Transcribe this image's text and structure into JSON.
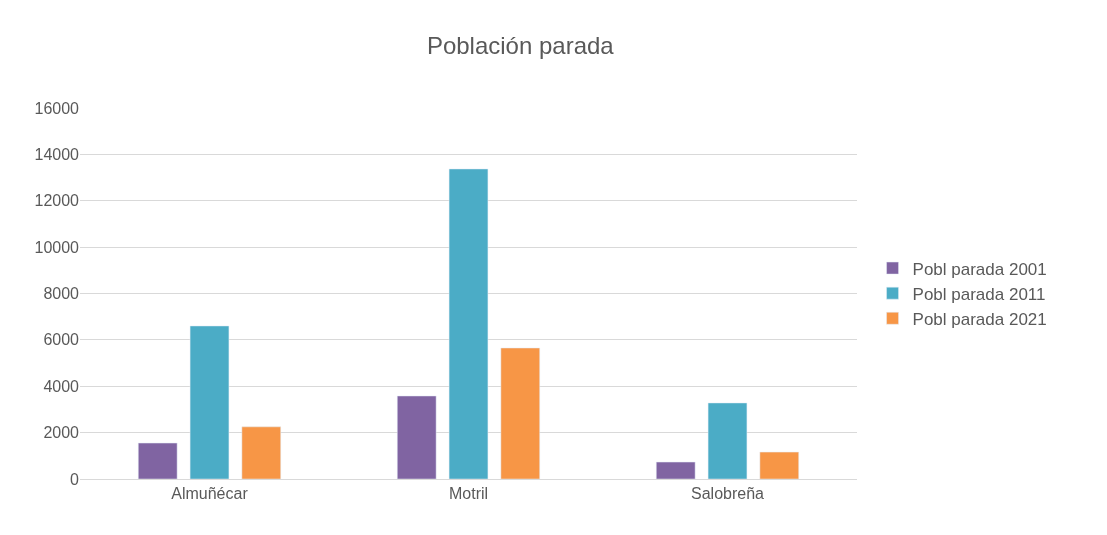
{
  "chart_data": {
    "type": "bar",
    "title": "Población parada",
    "categories": [
      "Almuñécar",
      "Motril",
      "Salobreña"
    ],
    "series": [
      {
        "name": "Pobl parada 2001",
        "color": "#8064a2",
        "values": [
          1550,
          3580,
          730
        ]
      },
      {
        "name": "Pobl parada 2011",
        "color": "#4bacc6",
        "values": [
          6600,
          13370,
          3280
        ]
      },
      {
        "name": "Pobl parada 2021",
        "color": "#f79646",
        "values": [
          2250,
          5650,
          1160
        ]
      }
    ],
    "ylim": [
      0,
      16000
    ],
    "yticks": [
      0,
      2000,
      4000,
      6000,
      8000,
      10000,
      12000,
      14000,
      16000
    ],
    "grid": "y",
    "legend": "right"
  }
}
